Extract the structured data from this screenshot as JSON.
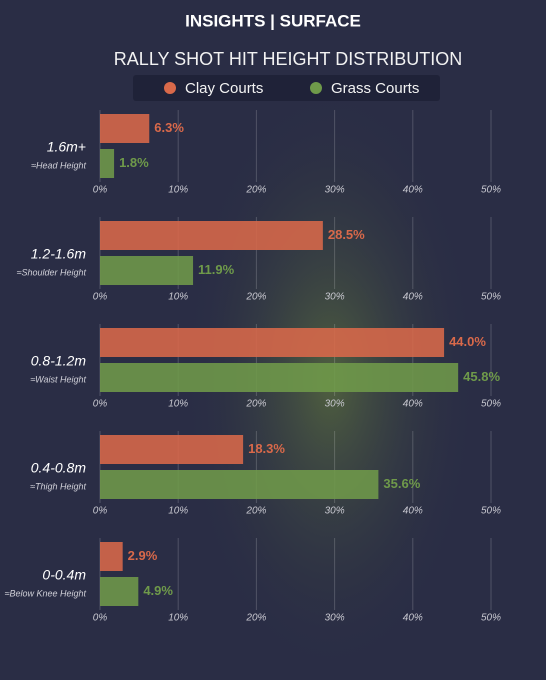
{
  "chart_data": {
    "type": "grouped-hbar",
    "title": "INSIGHTS | SURFACE",
    "subtitle": "RALLY SHOT HIT HEIGHT DISTRIBUTION",
    "categories": [
      "1.6m+",
      "1.2-1.6m",
      "0.8-1.2m",
      "0.4-0.8m",
      "0-0.4m"
    ],
    "category_notes": [
      "≈Head Height",
      "≈Shoulder Height",
      "≈Waist Height",
      "≈Thigh Height",
      "≈Below Knee Height"
    ],
    "series": [
      {
        "name": "Clay Courts",
        "color": "#d9694a",
        "values": [
          6.3,
          28.5,
          44.0,
          18.3,
          2.9
        ],
        "value_labels": [
          "6.3%",
          "28.5%",
          "44.0%",
          "18.3%",
          "2.9%"
        ]
      },
      {
        "name": "Grass Courts",
        "color": "#6f9a4a",
        "values": [
          1.8,
          11.9,
          45.8,
          35.6,
          4.9
        ],
        "value_labels": [
          "1.8%",
          "11.9%",
          "45.8%",
          "35.6%",
          "4.9%"
        ]
      }
    ],
    "xlim": [
      0,
      50
    ],
    "xticks": [
      {
        "value": 0,
        "label": "0%"
      },
      {
        "value": 10,
        "label": "10%"
      },
      {
        "value": 20,
        "label": "20%"
      },
      {
        "value": 30,
        "label": "30%"
      },
      {
        "value": 40,
        "label": "40%"
      },
      {
        "value": 50,
        "label": "50%"
      }
    ],
    "grid": true
  }
}
